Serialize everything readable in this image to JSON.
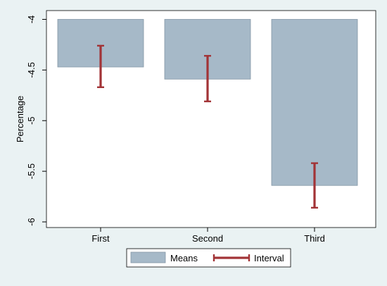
{
  "chart_data": {
    "type": "bar",
    "categories": [
      "First",
      "Second",
      "Third"
    ],
    "values": [
      -4.47,
      -4.59,
      -5.64
    ],
    "intervals": [
      {
        "low": -4.67,
        "high": -4.26
      },
      {
        "low": -4.81,
        "high": -4.36
      },
      {
        "low": -5.86,
        "high": -5.42
      }
    ],
    "title": "",
    "xlabel": "",
    "ylabel": "Percentage",
    "ylim": [
      -6,
      -4
    ],
    "yticks": [
      "-4",
      "-4.5",
      "-5",
      "-5.5",
      "-6"
    ],
    "ytick_values": [
      -4,
      -4.5,
      -5,
      -5.5,
      -6
    ],
    "grid": false,
    "legend": {
      "placement": "bottom",
      "entries": [
        {
          "label": "Means",
          "kind": "bar"
        },
        {
          "label": "Interval",
          "kind": "errorbar"
        }
      ]
    },
    "colors": {
      "bar_fill": "#a6b9c8",
      "bar_stroke": "#8497a6",
      "interval": "#a23336",
      "plot_bg": "#ffffff",
      "outer_bg": "#eaf2f3"
    }
  }
}
